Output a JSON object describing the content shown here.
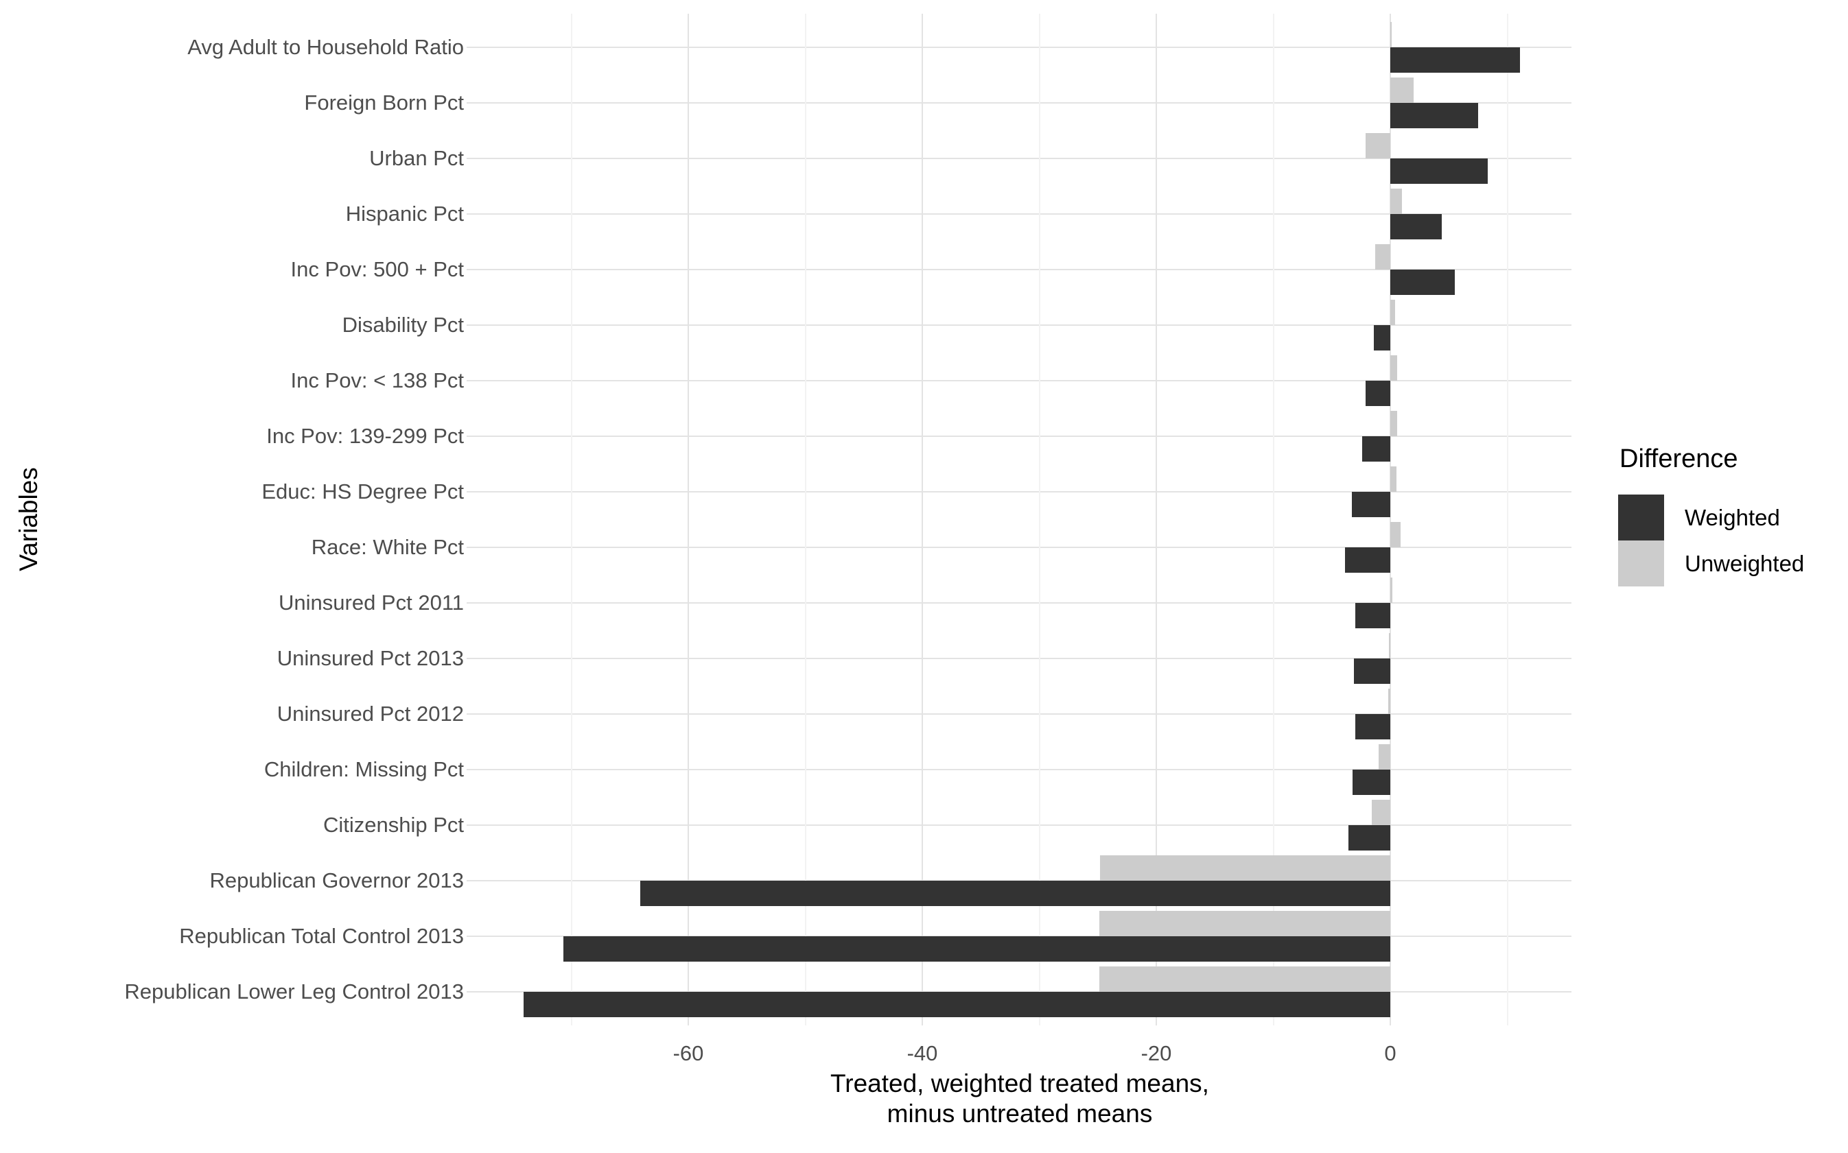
{
  "chart_data": {
    "type": "bar",
    "orientation": "horizontal",
    "title": "",
    "xlabel": "Treated, weighted treated means, minus untreated means",
    "ylabel": "Variables",
    "legend_title": "Difference",
    "legend_position": "right",
    "grid": true,
    "xlim": [
      -78.8,
      15.5
    ],
    "x_major_ticks": [
      -60,
      -40,
      -20,
      0
    ],
    "x_minor_gridlines": [
      -70,
      -50,
      -30,
      -10,
      10
    ],
    "categories": [
      "Avg Adult to Household Ratio",
      "Foreign Born Pct",
      "Urban Pct",
      "Hispanic Pct",
      "Inc Pov: 500 + Pct",
      "Disability Pct",
      "Inc Pov: < 138 Pct",
      "Inc Pov: 139-299 Pct",
      "Educ: HS Degree Pct",
      "Race: White Pct",
      "Uninsured Pct 2011",
      "Uninsured Pct 2013",
      "Uninsured Pct 2012",
      "Children: Missing Pct",
      "Citizenship Pct",
      "Republican Governor 2013",
      "Republican Total Control 2013",
      "Republican Lower Leg Control 2013"
    ],
    "series": [
      {
        "name": "Weighted",
        "color": "#333333",
        "values": [
          11.1,
          7.5,
          8.3,
          4.4,
          5.5,
          -1.4,
          -2.1,
          -2.4,
          -3.3,
          -3.9,
          -3.0,
          -3.1,
          -3.0,
          -3.2,
          -3.6,
          -64.1,
          -70.7,
          -74.1
        ]
      },
      {
        "name": "Unweighted",
        "color": "#cccccc",
        "values": [
          0.1,
          2.0,
          -2.1,
          1.0,
          -1.3,
          0.4,
          0.6,
          0.6,
          0.5,
          0.9,
          0.2,
          -0.1,
          -0.2,
          -1.0,
          -1.6,
          -24.8,
          -24.9,
          -24.9
        ]
      }
    ]
  },
  "axis": {
    "x_tick_labels": [
      "-60",
      "-40",
      "-20",
      "0"
    ],
    "x_title_line1": "Treated, weighted treated means,",
    "x_title_line2": "minus untreated means",
    "y_title": "Variables"
  },
  "legend": {
    "title": "Difference",
    "items": [
      {
        "label": "Weighted",
        "color": "#333333"
      },
      {
        "label": "Unweighted",
        "color": "#cccccc"
      }
    ]
  },
  "colors": {
    "weighted_bar": "#333333",
    "unweighted_bar": "#cccccc",
    "gridline_major": "#e3e3e3",
    "gridline_minor": "#f2f2f2",
    "axis_text": "#4d4d4d",
    "title_text": "#000000",
    "background": "#ffffff"
  }
}
